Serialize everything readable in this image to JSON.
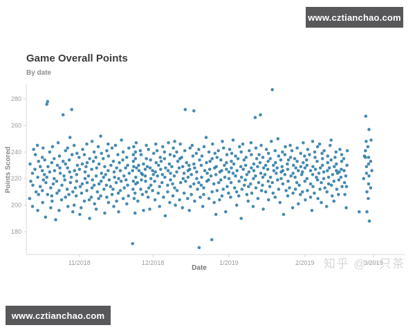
{
  "watermarks": {
    "site_top_right": "www.cztianchao.com",
    "site_bottom_left": "www.cztianchao.com",
    "zhihu": "知乎 @一只茶",
    "box_color": "#58585a"
  },
  "chart_data": {
    "type": "scatter",
    "title": "Game Overall Points",
    "subtitle": "By date",
    "xlabel": "Date",
    "ylabel": "Points Scored",
    "dot_color": "#2d7aa6",
    "axis_color": "#d8d8d8",
    "tick_label_color": "#9a9a9a",
    "grid": "off",
    "legend": "none",
    "ylim": [
      165,
      292
    ],
    "y_ticks": [
      280,
      260,
      240,
      220,
      200,
      180
    ],
    "x_unit": "day index from left edge of axis (monthly tick anchors below)",
    "x_ticks": [
      {
        "label": "11/2018",
        "day": 20
      },
      {
        "label": "12/2018",
        "day": 50
      },
      {
        "label": "1/2019",
        "day": 81
      },
      {
        "label": "2/2019",
        "day": 112
      },
      {
        "label": "3/2019",
        "day": 140
      }
    ],
    "scores_by_day": [
      [
        218,
        231,
        205
      ],
      [
        242,
        199,
        224,
        215
      ],
      [
        227,
        210,
        238
      ],
      [
        196,
        221,
        233,
        208,
        245
      ],
      [
        214,
        229
      ],
      [
        236,
        202,
        219,
        226,
        243,
        211
      ],
      [
        223,
        191,
        234,
        217
      ],
      [
        278,
        276,
        229,
        208,
        221
      ],
      [
        213,
        240,
        198,
        225
      ],
      [
        232,
        207,
        244,
        216,
        203
      ],
      [
        220,
        235,
        189,
        226
      ],
      [
        209,
        247,
        218,
        230
      ],
      [
        224,
        196,
        237,
        211,
        228
      ],
      [
        268,
        215,
        233,
        204
      ],
      [
        241,
        219,
        206,
        231,
        222
      ],
      [
        199,
        228,
        243,
        212
      ],
      [
        234,
        217,
        251,
        208,
        225
      ],
      [
        272,
        221,
        195,
        238,
        210
      ],
      [
        226,
        213,
        245,
        200
      ],
      [
        230,
        218,
        207,
        239,
        223
      ],
      [
        193,
        236,
        214,
        227
      ],
      [
        242,
        209,
        231,
        216,
        198
      ],
      [
        225,
        238,
        203,
        220
      ],
      [
        211,
        229,
        246,
        217,
        232
      ],
      [
        204,
        222,
        235,
        190
      ],
      [
        248,
        213,
        227,
        206,
        219
      ],
      [
        233,
        201,
        240,
        215
      ],
      [
        222,
        236,
        210,
        228,
        197
      ],
      [
        244,
        216,
        231,
        205
      ],
      [
        218,
        252,
        207,
        224,
        239
      ],
      [
        229,
        212,
        235,
        194,
        221
      ],
      [
        206,
        241,
        223,
        215
      ],
      [
        237,
        219,
        202,
        246,
        226
      ],
      [
        214,
        230,
        208,
        243
      ],
      [
        221,
        199,
        233,
        225,
        212
      ],
      [
        245,
        217,
        228,
        203
      ],
      [
        232,
        220,
        195,
        238,
        209
      ],
      [
        226,
        211,
        249,
        218
      ],
      [
        205,
        234,
        222,
        240,
        213
      ],
      [
        219,
        228,
        201,
        236
      ],
      [
        243,
        215,
        230,
        207,
        224
      ],
      [],
      [
        171,
        226,
        238,
        212,
        229,
        244,
        218,
        233,
        205
      ],
      [
        221,
        209,
        235,
        247,
        216,
        228,
        194,
        240
      ],
      [
        230,
        217,
        203,
        226
      ],
      [
        238,
        224,
        212,
        241,
        219
      ],
      [
        208,
        231,
        196,
        223
      ],
      [
        245,
        218,
        227,
        235,
        210,
        222
      ],
      [
        213,
        229,
        242,
        206
      ],
      [
        234,
        220,
        197,
        228,
        215
      ],
      [
        226,
        239,
        211,
        223
      ],
      [
        218,
        232,
        204,
        246,
        225
      ],
      [
        209,
        241,
        222,
        230
      ],
      [
        236,
        214,
        227,
        199,
        233
      ],
      [
        223,
        206,
        244,
        217
      ],
      [
        228,
        235,
        192,
        221,
        240
      ],
      [
        215,
        247,
        210,
        226
      ],
      [
        231,
        219,
        238,
        202,
        224
      ],
      [
        207,
        229,
        243,
        216
      ],
      [
        222,
        237,
        213,
        248,
        200
      ],
      [
        240,
        211,
        225,
        233
      ],
      [
        217,
        204,
        235,
        228,
        246
      ],
      [
        229,
        220,
        198,
        236
      ],
      [
        272,
        224,
        209,
        241,
        218
      ],
      [
        226,
        232,
        205,
        221
      ],
      [
        214,
        243,
        227,
        196,
        230
      ],
      [
        237,
        208,
        223,
        245
      ],
      [
        271,
        216,
        231,
        203,
        228
      ],
      [
        225,
        239,
        212,
        220
      ],
      [
        168,
        234,
        217,
        242,
        206
      ],
      [
        221,
        230,
        199,
        237,
        215
      ],
      [
        244,
        213,
        226,
        208
      ],
      [
        232,
        218,
        251,
        224
      ],
      [
        205,
        227,
        240,
        219,
        233
      ],
      [
        174,
        222,
        235,
        210,
        246
      ],
      [
        228,
        202,
        239,
        216
      ],
      [
        223,
        236,
        211,
        229,
        193
      ],
      [
        241,
        217,
        225,
        204
      ],
      [
        219,
        234,
        207,
        248,
        226
      ],
      [
        212,
        230,
        243,
        221
      ],
      [
        227,
        195,
        238,
        214,
        232
      ],
      [
        220,
        242,
        209,
        225
      ],
      [
        233,
        206,
        228,
        217,
        239
      ],
      [
        224,
        249,
        213,
        231
      ],
      [
        210,
        226,
        237,
        200,
        222
      ],
      [
        235,
        218,
        244,
        207
      ],
      [
        229,
        221,
        190,
        240,
        212
      ],
      [
        246,
        215,
        227,
        234
      ],
      [
        208,
        223,
        236,
        219,
        230
      ],
      [
        225,
        203,
        241,
        214
      ],
      [
        238,
        228,
        216,
        247,
        209
      ],
      [
        231,
        220,
        199,
        226
      ],
      [
        266,
        213,
        235,
        222,
        243
      ],
      [
        217,
        229,
        205,
        238
      ],
      [
        268,
        224,
        232,
        211,
        245
      ],
      [
        221,
        236,
        197,
        228,
        215
      ],
      [
        242,
        210,
        230,
        223
      ],
      [
        227,
        239,
        204,
        218,
        233
      ],
      [
        214,
        248,
        221,
        235
      ],
      [
        287,
        226,
        209,
        230,
        217
      ],
      [
        232,
        241,
        206,
        224
      ],
      [
        219,
        228,
        250,
        212,
        237
      ],
      [
        225,
        202,
        234,
        220
      ],
      [
        240,
        216,
        229,
        193,
        226
      ],
      [
        211,
        238,
        223,
        244
      ],
      [
        234,
        207,
        227,
        218,
        231
      ],
      [
        222,
        245,
        213,
        236
      ],
      [
        198,
        230,
        224,
        241,
        209
      ],
      [
        235,
        212,
        228,
        221
      ],
      [
        226,
        243,
        201,
        233,
        217
      ],
      [
        229,
        215,
        239,
        208
      ],
      [
        247,
        223,
        210,
        232,
        225
      ],
      [
        218,
        237,
        204,
        228
      ],
      [
        230,
        220,
        242,
        211,
        234
      ],
      [
        206,
        226,
        238,
        216
      ],
      [
        223,
        248,
        214,
        229,
        196
      ],
      [
        236,
        209,
        227,
        240
      ],
      [
        221,
        233,
        205,
        244,
        219
      ],
      [
        228,
        212,
        246,
        224
      ],
      [
        239,
        217,
        230,
        202,
        235
      ],
      [
        213,
        225,
        241,
        220
      ],
      [
        232,
        199,
        226,
        237,
        210
      ],
      [
        245,
        221,
        216,
        228
      ],
      [
        207,
        234,
        223,
        249,
        215
      ],
      [
        229,
        218,
        236,
        203
      ],
      [
        224,
        240,
        212,
        231,
        226
      ],
      [
        219,
        208,
        242,
        225
      ],
      [
        233,
        227,
        214,
        238,
        221
      ],
      [
        217,
        235,
        208,
        226
      ],
      [
        241,
        222,
        198,
        230,
        214
      ],
      [],
      [],
      [],
      [],
      [
        195
      ],
      [],
      [
        220,
        237
      ],
      [
        267,
        236,
        224,
        248,
        210,
        229,
        195,
        241
      ],
      [
        257,
        231,
        216,
        244,
        222,
        205,
        236,
        188
      ],
      [
        226,
        249,
        213,
        233
      ]
    ]
  }
}
